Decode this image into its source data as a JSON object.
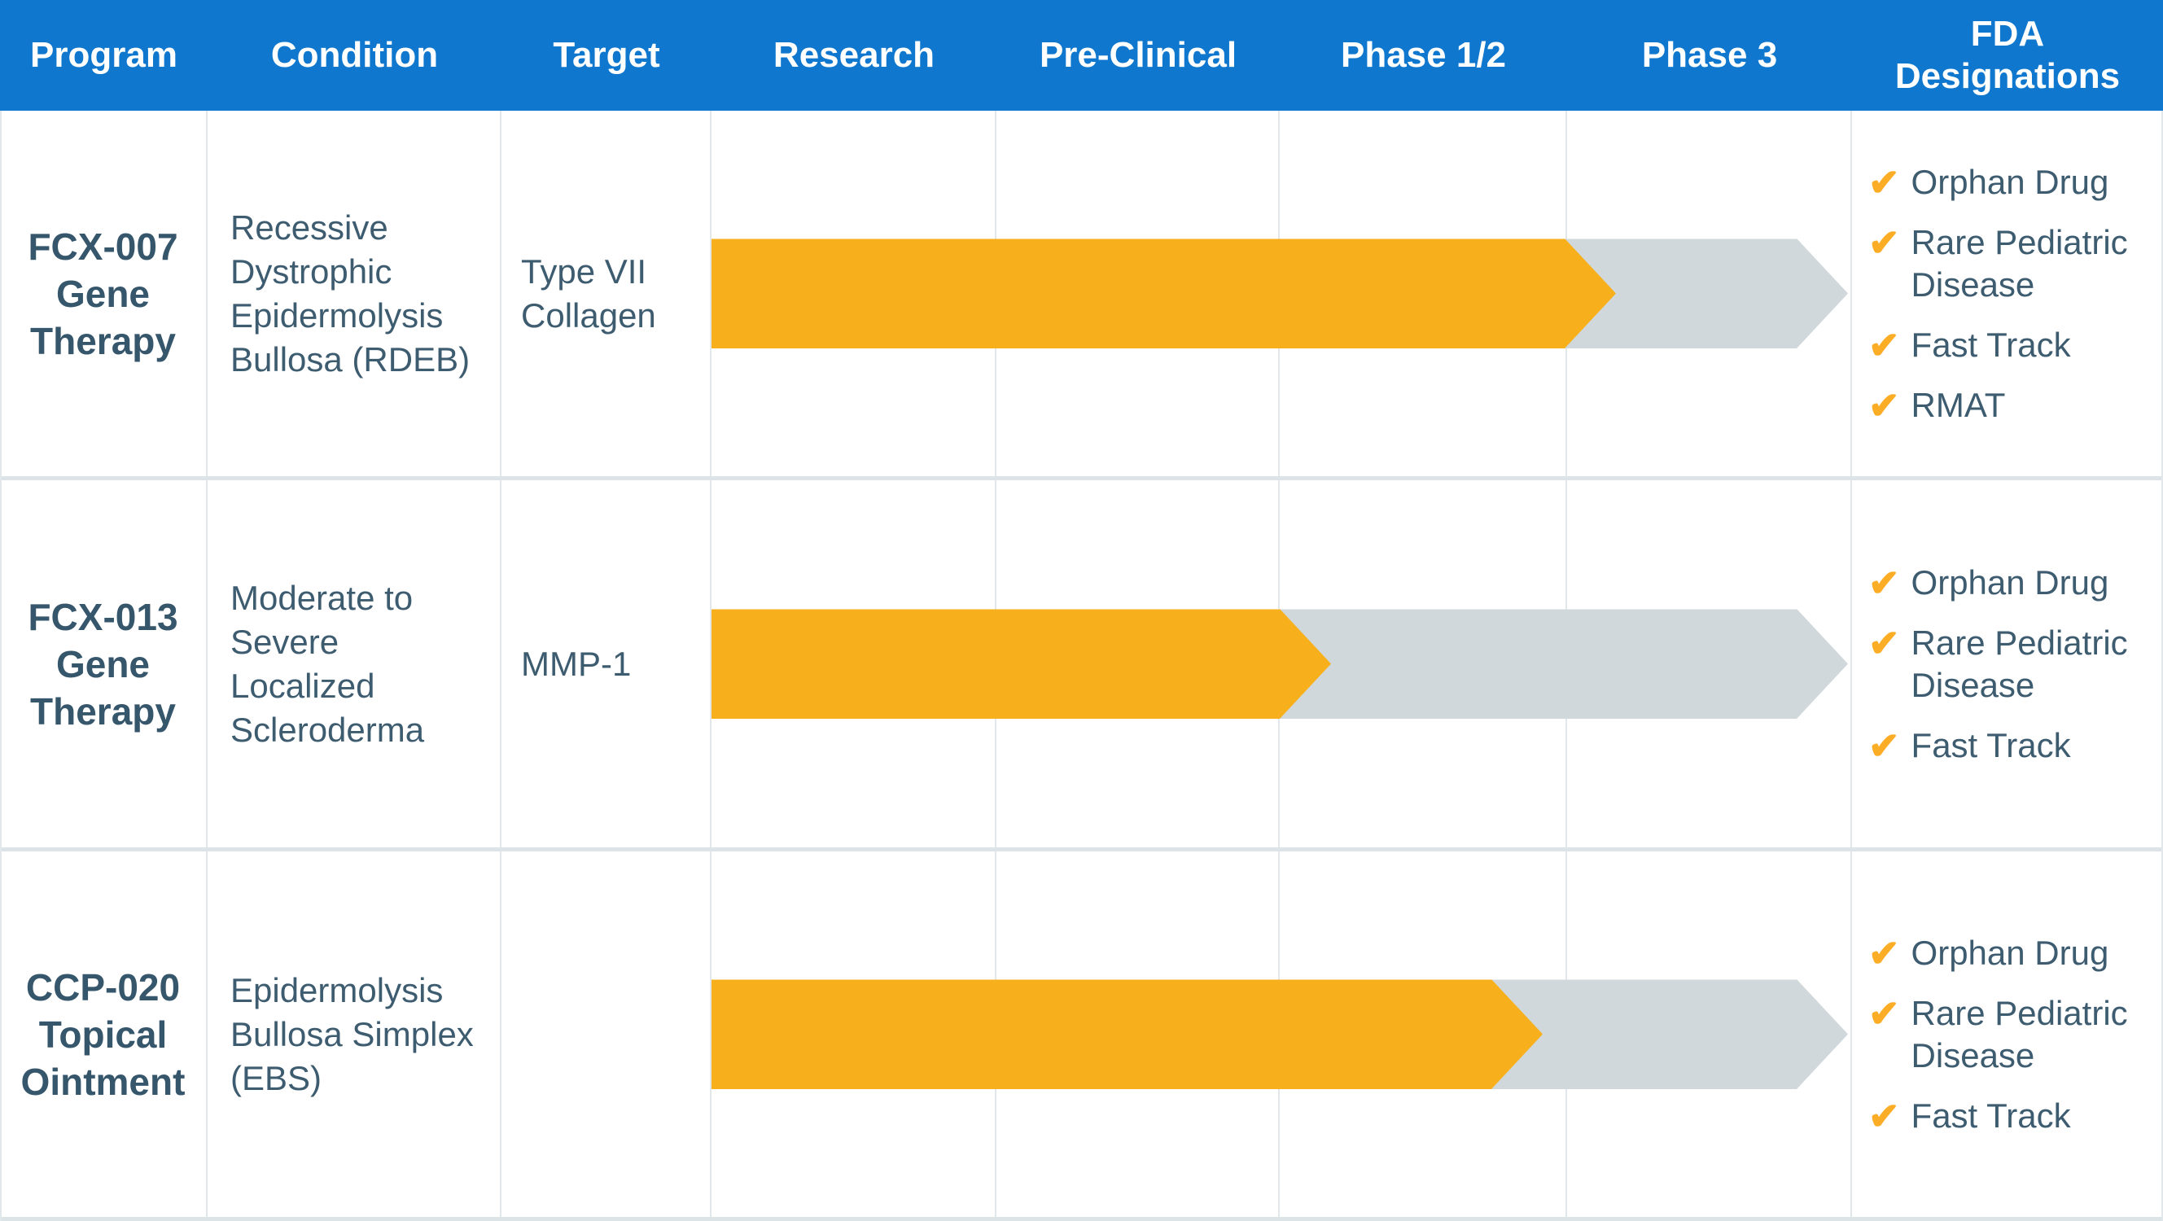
{
  "table": {
    "column_headers": [
      "Program",
      "Condition",
      "Target",
      "Research",
      "Pre-Clinical",
      "Phase 1/2",
      "Phase 3",
      "FDA Designations"
    ],
    "stage_columns": [
      "Research",
      "Pre-Clinical",
      "Phase 1/2",
      "Phase 3"
    ]
  },
  "programs": [
    {
      "name": "FCX-007 Gene Therapy",
      "condition": "Recessive Dystrophic Epidermolysis Bullosa (RDEB)",
      "target": "Type VII Collagen",
      "progress": {
        "fraction_of_pipeline": 0.751
      },
      "fda_designations": [
        "Orphan Drug",
        "Rare Pediatric Disease",
        "Fast Track",
        "RMAT"
      ]
    },
    {
      "name": "FCX-013 Gene Therapy",
      "condition": "Moderate to Severe Localized Scleroderma",
      "target": "MMP-1",
      "progress": {
        "fraction_of_pipeline": 0.5
      },
      "fda_designations": [
        "Orphan Drug",
        "Rare Pediatric Disease",
        "Fast Track"
      ]
    },
    {
      "name": "CCP-020 Topical Ointment",
      "condition": "Epidermolysis Bullosa Simplex (EBS)",
      "target": "",
      "progress": {
        "fraction_of_pipeline": 0.686
      },
      "fda_designations": [
        "Orphan Drug",
        "Rare Pediatric Disease",
        "Fast Track"
      ]
    }
  ],
  "colors": {
    "header_bg": "#0F78CE",
    "header_text": "#FFFFFF",
    "bar_complete": "#F7B01B",
    "bar_remaining": "#D1D8DB",
    "body_text": "#3E5C70",
    "check": "#FBAD26",
    "grid_line": "#E1E7EA",
    "row_divider": "#DDE4E8"
  },
  "icons": {
    "designation_check": "✔"
  }
}
